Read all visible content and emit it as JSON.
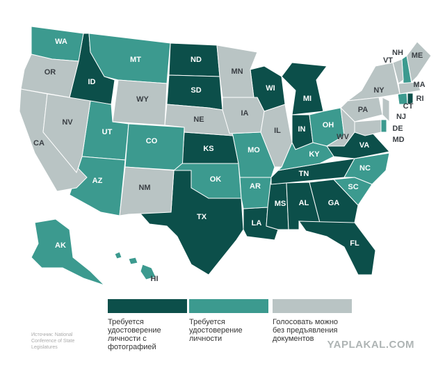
{
  "legend": {
    "items": [
      {
        "lines": [
          "Требуется",
          "удостоверение",
          "личности с",
          "фотографией"
        ],
        "color": "#0c4f4a",
        "states": [
          "ID",
          "ND",
          "SD",
          "KS",
          "TX",
          "LA",
          "MS",
          "AL",
          "GA",
          "FL",
          "TN",
          "IN",
          "MI",
          "WI",
          "VA",
          "RI"
        ]
      },
      {
        "lines": [
          "Требуется",
          "удостоверение",
          "личности"
        ],
        "color": "#3c9a8f",
        "states": [
          "WA",
          "MT",
          "UT",
          "CO",
          "AZ",
          "OK",
          "AR",
          "MO",
          "OH",
          "KY",
          "NC",
          "SC",
          "AK",
          "HI",
          "NH",
          "CT",
          "DE"
        ]
      },
      {
        "lines": [
          "Голосовать можно",
          "без предъявления",
          "документов"
        ],
        "color": "#b9c4c4",
        "states": [
          "OR",
          "CA",
          "NV",
          "WY",
          "NE",
          "NM",
          "MN",
          "IA",
          "IL",
          "NY",
          "PA",
          "VT",
          "ME",
          "MA",
          "NJ",
          "MD",
          "WV"
        ]
      }
    ]
  },
  "source": {
    "lines": [
      "Источник: National",
      "Conference of State",
      "Legislatures"
    ]
  },
  "watermark": "YAPLAKAL.COM"
}
